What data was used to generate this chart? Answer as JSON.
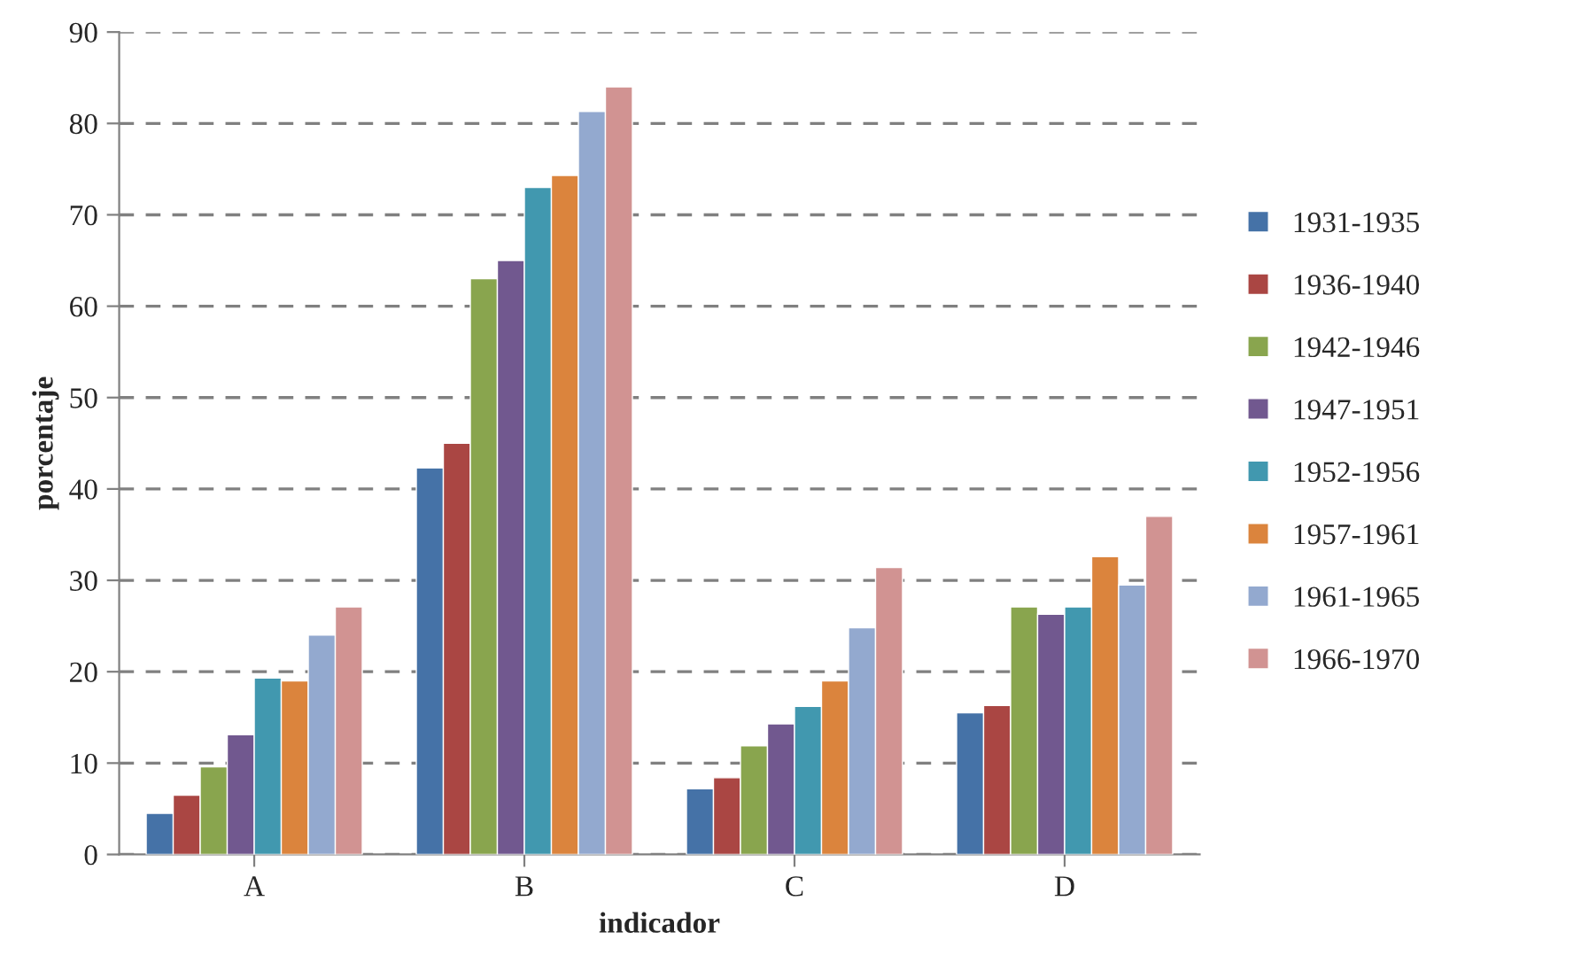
{
  "chart_data": {
    "type": "bar",
    "xlabel": "indicador",
    "ylabel": "porcentaje",
    "categories": [
      "A",
      "B",
      "C",
      "D"
    ],
    "series": [
      {
        "name": "1931-1935",
        "color": "#4572a7",
        "values": [
          4.5,
          42.3,
          7.2,
          15.5
        ]
      },
      {
        "name": "1936-1940",
        "color": "#aa4643",
        "values": [
          6.5,
          45,
          8.4,
          16.3
        ]
      },
      {
        "name": "1942-1946",
        "color": "#89a54e",
        "values": [
          9.6,
          63,
          11.9,
          27.1
        ]
      },
      {
        "name": "1947-1951",
        "color": "#71588f",
        "values": [
          13.1,
          65,
          14.3,
          26.3
        ]
      },
      {
        "name": "1952-1956",
        "color": "#4198af",
        "values": [
          19.3,
          73,
          16.2,
          27.1
        ]
      },
      {
        "name": "1957-1961",
        "color": "#db843d",
        "values": [
          19,
          74.3,
          19,
          32.6
        ]
      },
      {
        "name": "1961-1965",
        "color": "#93a9cf",
        "values": [
          24,
          81.3,
          24.8,
          29.5
        ]
      },
      {
        "name": "1966-1970",
        "color": "#d19392",
        "values": [
          27.1,
          84,
          31.4,
          37
        ]
      }
    ],
    "ylim": [
      0,
      90
    ],
    "yticks": [
      0,
      10,
      20,
      30,
      40,
      50,
      60,
      70,
      80,
      90
    ],
    "grid": "y",
    "legend": "right"
  }
}
